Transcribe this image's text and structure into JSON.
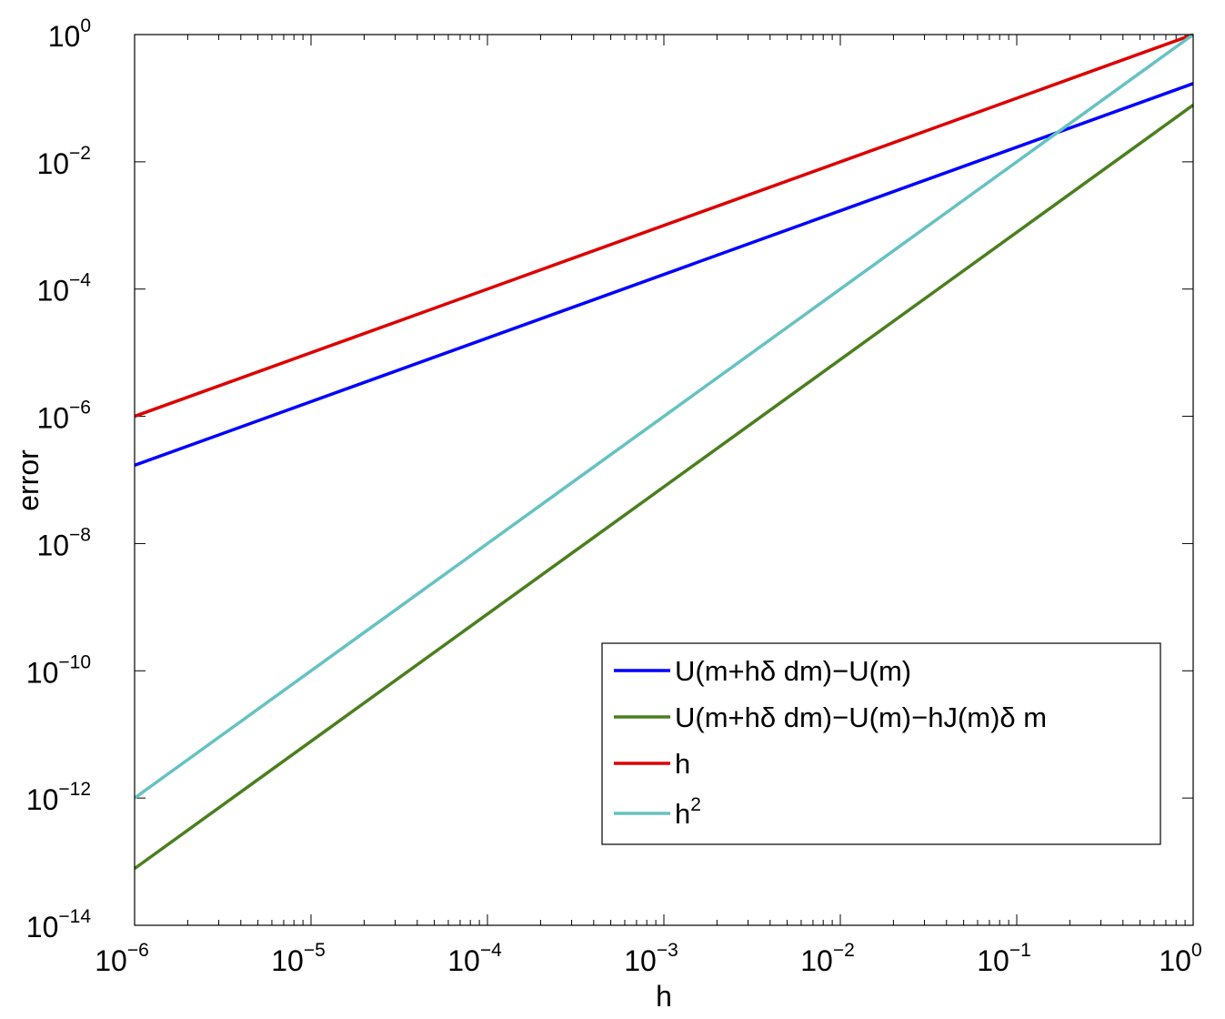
{
  "chart_data": {
    "type": "line",
    "title": "",
    "xlabel": "h",
    "ylabel": "error",
    "xscale": "log",
    "yscale": "log",
    "xlim": [
      1e-06,
      1
    ],
    "ylim": [
      1e-14,
      1
    ],
    "x_ticks": [
      {
        "base": "10",
        "exp": "−6"
      },
      {
        "base": "10",
        "exp": "−5"
      },
      {
        "base": "10",
        "exp": "−4"
      },
      {
        "base": "10",
        "exp": "−3"
      },
      {
        "base": "10",
        "exp": "−2"
      },
      {
        "base": "10",
        "exp": "−1"
      },
      {
        "base": "10",
        "exp": "0"
      }
    ],
    "y_ticks": [
      {
        "base": "10",
        "exp": "0"
      },
      {
        "base": "10",
        "exp": "−2"
      },
      {
        "base": "10",
        "exp": "−4"
      },
      {
        "base": "10",
        "exp": "−6"
      },
      {
        "base": "10",
        "exp": "−8"
      },
      {
        "base": "10",
        "exp": "−10"
      },
      {
        "base": "10",
        "exp": "−12"
      },
      {
        "base": "10",
        "exp": "−14"
      }
    ],
    "grid": false,
    "legend_position": "bottom-right",
    "series": [
      {
        "name": "U(m+hδ dm)−U(m)",
        "color": "#0000ff",
        "x": [
          1e-06,
          1
        ],
        "y": [
          1.7e-07,
          0.17
        ]
      },
      {
        "name": "U(m+hδ dm)−U(m)−hJ(m)δ m",
        "color": "#4a7f1e",
        "x": [
          1e-06,
          1
        ],
        "y": [
          7.8e-14,
          0.078
        ]
      },
      {
        "name": "h",
        "color": "#dd0000",
        "x": [
          1e-06,
          1
        ],
        "y": [
          1e-06,
          1
        ]
      },
      {
        "name": "h",
        "name_sup": "2",
        "color": "#66c2c2",
        "x": [
          1e-06,
          1
        ],
        "y": [
          1e-12,
          1
        ]
      }
    ]
  }
}
